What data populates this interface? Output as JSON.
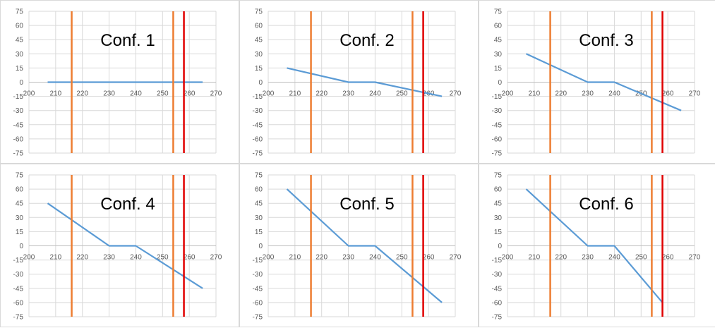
{
  "colors": {
    "series": "#5b9bd5",
    "orange_line": "#ed7d31",
    "red_line": "#e00000",
    "grid": "#d9d9d9",
    "axis": "#bfbfbf",
    "tick_text": "#595959"
  },
  "chart_data": [
    {
      "type": "line",
      "title": "Conf. 1",
      "x": [
        207,
        230,
        240,
        265
      ],
      "series": [
        {
          "values": [
            0,
            0,
            0,
            0
          ]
        }
      ],
      "xlim": [
        200,
        270
      ],
      "ylim": [
        -75,
        75
      ],
      "xticks": [
        200,
        210,
        220,
        230,
        240,
        250,
        260,
        270
      ],
      "xtick_labels": [
        "200",
        "210",
        "220",
        "230",
        "240",
        "250",
        "260",
        "270"
      ],
      "yticks": [
        75,
        60,
        45,
        30,
        15,
        0,
        -15,
        -30,
        -45,
        -60,
        -75
      ],
      "ytick_labels": [
        "75",
        "60",
        "45",
        "30",
        "15",
        "0",
        "-15",
        "-30",
        "-45",
        "-60",
        "-75"
      ],
      "vlines": [
        {
          "x": 216,
          "color": "orange"
        },
        {
          "x": 254,
          "color": "orange"
        },
        {
          "x": 258,
          "color": "red"
        }
      ],
      "grid": true
    },
    {
      "type": "line",
      "title": "Conf. 2",
      "x": [
        207,
        230,
        240,
        265
      ],
      "series": [
        {
          "values": [
            15,
            0,
            0,
            -15
          ]
        }
      ],
      "xlim": [
        200,
        270
      ],
      "ylim": [
        -75,
        75
      ],
      "xticks": [
        200,
        210,
        220,
        230,
        240,
        250,
        260,
        270
      ],
      "xtick_labels": [
        "200",
        "210",
        "220",
        "230",
        "240",
        "250",
        "260",
        "270"
      ],
      "yticks": [
        75,
        60,
        45,
        30,
        15,
        0,
        -15,
        -30,
        -45,
        -60,
        -75
      ],
      "ytick_labels": [
        "75",
        "60",
        "45",
        "30",
        "15",
        "0",
        "-15",
        "-30",
        "-45",
        "-60",
        "-75"
      ],
      "vlines": [
        {
          "x": 216,
          "color": "orange"
        },
        {
          "x": 254,
          "color": "orange"
        },
        {
          "x": 258,
          "color": "red"
        }
      ],
      "grid": true
    },
    {
      "type": "line",
      "title": "Conf. 3",
      "x": [
        207,
        230,
        240,
        265
      ],
      "series": [
        {
          "values": [
            30,
            0,
            0,
            -30
          ]
        }
      ],
      "xlim": [
        200,
        270
      ],
      "ylim": [
        -75,
        75
      ],
      "xticks": [
        200,
        210,
        220,
        230,
        240,
        250,
        260,
        270
      ],
      "xtick_labels": [
        "200",
        "210",
        "220",
        "230",
        "240",
        "250",
        "260",
        "270"
      ],
      "yticks": [
        75,
        60,
        45,
        30,
        15,
        0,
        -15,
        -30,
        -45,
        -60,
        -75
      ],
      "ytick_labels": [
        "75",
        "60",
        "45",
        "30",
        "15",
        "0",
        "-15",
        "-30",
        "-45",
        "-60",
        "-75"
      ],
      "vlines": [
        {
          "x": 216,
          "color": "orange"
        },
        {
          "x": 254,
          "color": "orange"
        },
        {
          "x": 258,
          "color": "red"
        }
      ],
      "grid": true
    },
    {
      "type": "line",
      "title": "Conf. 4",
      "x": [
        207,
        230,
        240,
        265
      ],
      "series": [
        {
          "values": [
            45,
            0,
            0,
            -45
          ]
        }
      ],
      "xlim": [
        200,
        270
      ],
      "ylim": [
        -75,
        75
      ],
      "xticks": [
        200,
        210,
        220,
        230,
        240,
        250,
        260,
        270
      ],
      "xtick_labels": [
        "200",
        "210",
        "220",
        "230",
        "240",
        "250",
        "260",
        "270"
      ],
      "yticks": [
        75,
        60,
        45,
        30,
        15,
        0,
        -15,
        -30,
        -45,
        -60,
        -75
      ],
      "ytick_labels": [
        "75",
        "60",
        "45",
        "30",
        "15",
        "0",
        "-15",
        "-30",
        "-45",
        "-60",
        "-75"
      ],
      "vlines": [
        {
          "x": 216,
          "color": "orange"
        },
        {
          "x": 254,
          "color": "orange"
        },
        {
          "x": 258,
          "color": "red"
        }
      ],
      "grid": true
    },
    {
      "type": "line",
      "title": "Conf. 5",
      "x": [
        207,
        230,
        240,
        265
      ],
      "series": [
        {
          "values": [
            60,
            0,
            0,
            -60
          ]
        }
      ],
      "xlim": [
        200,
        270
      ],
      "ylim": [
        -75,
        75
      ],
      "xticks": [
        200,
        210,
        220,
        230,
        240,
        250,
        260,
        270
      ],
      "xtick_labels": [
        "200",
        "210",
        "220",
        "230",
        "240",
        "250",
        "260",
        "270"
      ],
      "yticks": [
        75,
        60,
        45,
        30,
        15,
        0,
        -15,
        -30,
        -45,
        -60,
        -75
      ],
      "ytick_labels": [
        "75",
        "60",
        "45",
        "30",
        "15",
        "0",
        "-15",
        "-30",
        "-45",
        "-60",
        "-75"
      ],
      "vlines": [
        {
          "x": 216,
          "color": "orange"
        },
        {
          "x": 254,
          "color": "orange"
        },
        {
          "x": 258,
          "color": "red"
        }
      ],
      "grid": true
    },
    {
      "type": "line",
      "title": "Conf. 6",
      "x": [
        207,
        230,
        240,
        258
      ],
      "series": [
        {
          "values": [
            60,
            0,
            0,
            -60
          ]
        }
      ],
      "xlim": [
        200,
        270
      ],
      "ylim": [
        -75,
        75
      ],
      "xticks": [
        200,
        210,
        220,
        230,
        240,
        250,
        260,
        270
      ],
      "xtick_labels": [
        "200",
        "210",
        "220",
        "230",
        "240",
        "250",
        "260",
        "270"
      ],
      "yticks": [
        75,
        60,
        45,
        30,
        15,
        0,
        -15,
        -30,
        -45,
        -60,
        -75
      ],
      "ytick_labels": [
        "75",
        "60",
        "45",
        "30",
        "15",
        "0",
        "-15",
        "-30",
        "-45",
        "-60",
        "-75"
      ],
      "vlines": [
        {
          "x": 216,
          "color": "orange"
        },
        {
          "x": 254,
          "color": "orange"
        },
        {
          "x": 258,
          "color": "red"
        }
      ],
      "grid": true
    }
  ]
}
